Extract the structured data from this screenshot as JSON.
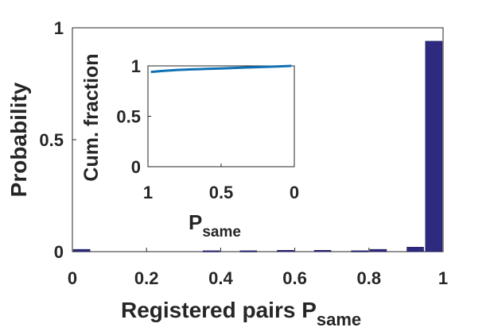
{
  "chart_data": [
    {
      "type": "bar",
      "xlabel": "Registered pairs P",
      "xlabel_sub": "same",
      "ylabel": "Probability",
      "xlim": [
        0,
        1
      ],
      "ylim": [
        0,
        1
      ],
      "xticks": [
        "0",
        "0.2",
        "0.4",
        "0.6",
        "0.8",
        "1"
      ],
      "yticks": [
        "0",
        "0.5",
        "1"
      ],
      "bar_color": "#2e2a80",
      "bins": [
        0.025,
        0.075,
        0.125,
        0.175,
        0.225,
        0.275,
        0.325,
        0.375,
        0.425,
        0.475,
        0.525,
        0.575,
        0.625,
        0.675,
        0.725,
        0.775,
        0.825,
        0.875,
        0.925,
        0.975
      ],
      "values": [
        0.01,
        0,
        0,
        0,
        0,
        0,
        0,
        0.004,
        0,
        0.004,
        0,
        0.006,
        0,
        0.006,
        0,
        0.004,
        0.01,
        0,
        0.02,
        0.94
      ]
    },
    {
      "type": "line",
      "xlabel": "P",
      "xlabel_sub": "same",
      "ylabel": "Cum. fraction",
      "xlim": [
        1,
        0
      ],
      "ylim": [
        0,
        1
      ],
      "xticks": [
        "1",
        "0.5",
        "0"
      ],
      "yticks": [
        "0",
        "0.5",
        "1"
      ],
      "line_color": "#0f72b5",
      "x": [
        0.98,
        0.9,
        0.8,
        0.7,
        0.6,
        0.5,
        0.4,
        0.3,
        0.2,
        0.1,
        0.02
      ],
      "y": [
        0.94,
        0.95,
        0.96,
        0.965,
        0.97,
        0.975,
        0.98,
        0.985,
        0.99,
        0.995,
        1.0
      ]
    }
  ]
}
